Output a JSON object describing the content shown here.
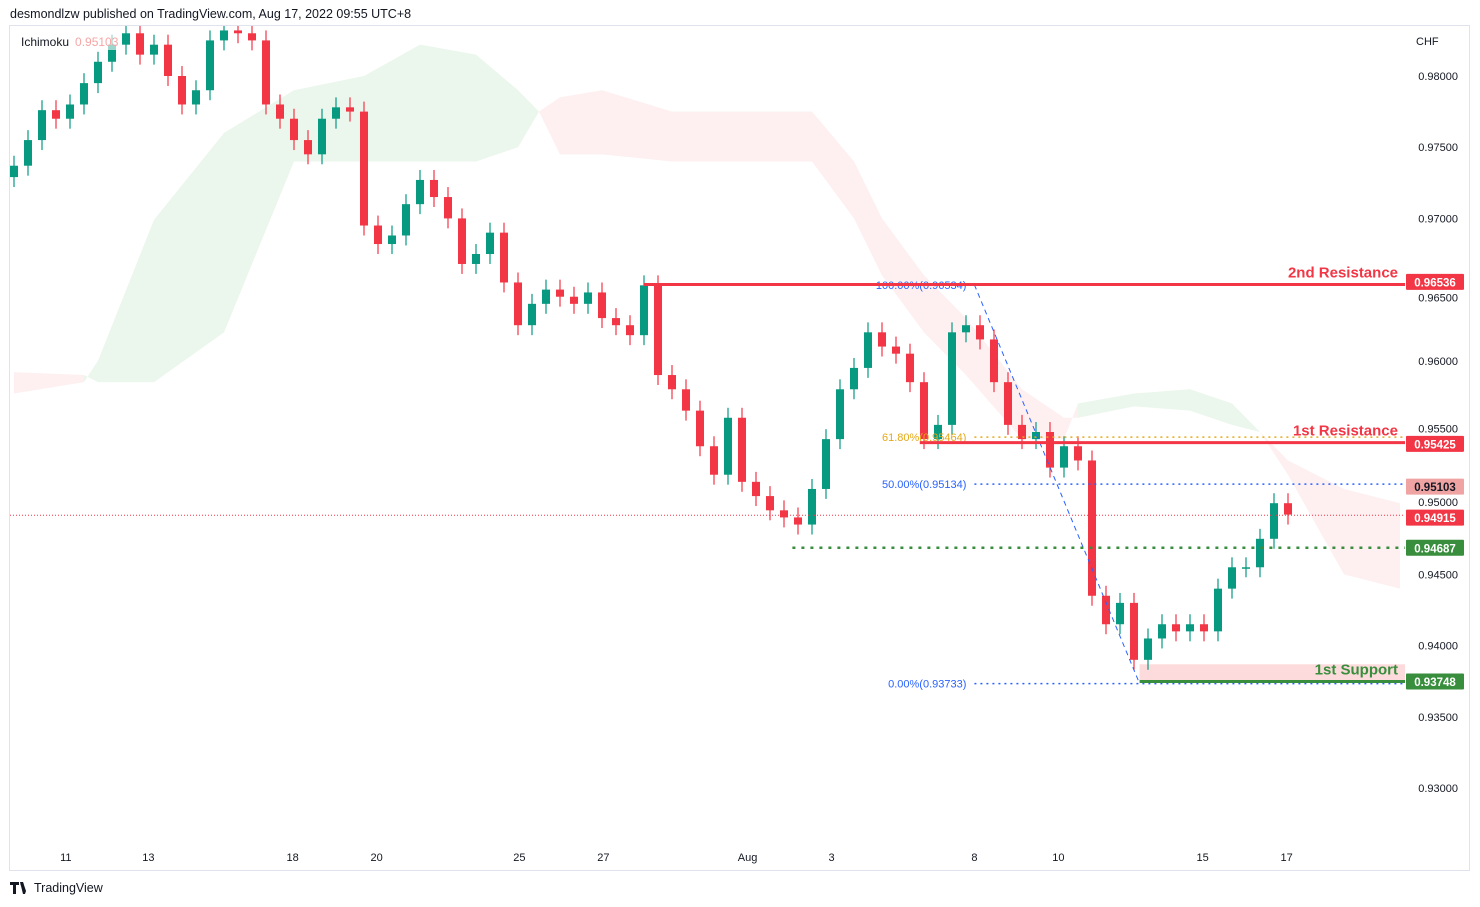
{
  "header": {
    "published": "desmondlzw published on TradingView.com, Aug 17, 2022 09:55 UTC+8"
  },
  "legend": {
    "indicator": "Ichimoku",
    "value": "0.95103"
  },
  "footer": {
    "brand": "TradingView",
    "logo_icon": "tradingview-logo-icon"
  },
  "colors": {
    "up": "#089981",
    "down": "#f23645",
    "cloud_up": "#4caf50",
    "cloud_down": "#f23645",
    "fib_blue": "#2962ff",
    "fib_orange": "#e6a817",
    "support": "#388e3c",
    "resistance": "#f23645"
  },
  "chart_data": {
    "type": "candlestick",
    "currency": "CHF",
    "yticks": [
      "0.98000",
      "0.97500",
      "0.97000",
      "0.96500",
      "0.96000",
      "0.95500",
      "0.95000",
      "0.94500",
      "0.94000",
      "0.93500",
      "0.93000"
    ],
    "ylim": [
      0.9265,
      0.9855
    ],
    "xticks": [
      {
        "label": "11",
        "bar": 3.7
      },
      {
        "label": "13",
        "bar": 9.6
      },
      {
        "label": "18",
        "bar": 19.9
      },
      {
        "label": "20",
        "bar": 25.9
      },
      {
        "label": "25",
        "bar": 36.1
      },
      {
        "label": "27",
        "bar": 42.1
      },
      {
        "label": "Aug",
        "bar": 52.4
      },
      {
        "label": "3",
        "bar": 58.4
      },
      {
        "label": "8",
        "bar": 68.6
      },
      {
        "label": "10",
        "bar": 74.6
      },
      {
        "label": "15",
        "bar": 84.9
      },
      {
        "label": "17",
        "bar": 90.9
      }
    ],
    "close": [
      0.9737,
      0.9755,
      0.9776,
      0.977,
      0.978,
      0.9795,
      0.981,
      0.9822,
      0.983,
      0.9815,
      0.9822,
      0.98,
      0.978,
      0.979,
      0.9825,
      0.9832,
      0.983,
      0.9825,
      0.978,
      0.977,
      0.9755,
      0.9745,
      0.977,
      0.9778,
      0.9775,
      0.9695,
      0.9682,
      0.9688,
      0.971,
      0.9727,
      0.9715,
      0.97,
      0.9668,
      0.9675,
      0.969,
      0.9655,
      0.9625,
      0.964,
      0.965,
      0.9645,
      0.964,
      0.9648,
      0.963,
      0.9625,
      0.9618,
      0.9653,
      0.959,
      0.958,
      0.9565,
      0.954,
      0.952,
      0.956,
      0.9515,
      0.9505,
      0.9495,
      0.949,
      0.9485,
      0.951,
      0.9545,
      0.958,
      0.9595,
      0.962,
      0.961,
      0.9605,
      0.9585,
      0.9545,
      0.9555,
      0.962,
      0.9625,
      0.9615,
      0.9585,
      0.9555,
      0.9545,
      0.955,
      0.9525,
      0.954,
      0.953,
      0.9435,
      0.9415,
      0.943,
      0.939,
      0.9405,
      0.9415,
      0.941,
      0.9415,
      0.941,
      0.944,
      0.9455,
      0.9455,
      0.9475,
      0.95,
      0.9492
    ],
    "ichimoku_cloud": [
      [
        0,
        0.9577,
        0.9592
      ],
      [
        5,
        0.9585,
        0.959
      ],
      [
        6,
        0.96,
        0.9585
      ],
      [
        10,
        0.9699,
        0.9585
      ],
      [
        15,
        0.976,
        0.962
      ],
      [
        20,
        0.979,
        0.974
      ],
      [
        25,
        0.98,
        0.974
      ],
      [
        29,
        0.9822,
        0.974
      ],
      [
        33,
        0.9815,
        0.974
      ],
      [
        36,
        0.979,
        0.975
      ],
      [
        37.5,
        0.9775,
        0.9775
      ],
      [
        39,
        0.9745,
        0.9785
      ],
      [
        42,
        0.9745,
        0.979
      ],
      [
        47,
        0.974,
        0.9775
      ],
      [
        57,
        0.974,
        0.9775
      ],
      [
        60,
        0.97,
        0.974
      ],
      [
        62,
        0.966,
        0.97
      ],
      [
        65,
        0.962,
        0.966
      ],
      [
        68,
        0.959,
        0.963
      ],
      [
        72,
        0.9545,
        0.958
      ],
      [
        75,
        0.9545,
        0.956
      ],
      [
        76,
        0.957,
        0.956
      ],
      [
        80,
        0.9577,
        0.9568
      ],
      [
        84,
        0.958,
        0.9565
      ],
      [
        87,
        0.957,
        0.9555
      ],
      [
        89,
        0.955,
        0.955
      ],
      [
        91,
        0.952,
        0.953
      ],
      [
        95,
        0.945,
        0.951
      ],
      [
        99,
        0.944,
        0.95
      ]
    ],
    "fibonacci": [
      {
        "label": "100.00%(0.96534)",
        "price": 0.96534,
        "color": "blue"
      },
      {
        "label": "61.80%(0.95464)",
        "price": 0.95464,
        "color": "orange"
      },
      {
        "label": "50.00%(0.95134)",
        "price": 0.95134,
        "color": "blue"
      },
      {
        "label": "0.00%(0.93733)",
        "price": 0.93733,
        "color": "blue"
      }
    ],
    "fib_swing": {
      "from_bar": 68.6,
      "from_price": 0.96534,
      "to_bar": 80.4,
      "to_price": 0.93733
    },
    "levels": [
      {
        "name": "2nd Resistance",
        "price": 0.96536,
        "label": "0.96536",
        "start_bar": 45,
        "kind": "resistance"
      },
      {
        "name": "1st Resistance",
        "price": 0.95425,
        "label": "0.95425",
        "start_bar": 64.7,
        "kind": "resistance"
      },
      {
        "name": "1st Support",
        "price": 0.93748,
        "label": "0.93748",
        "start_bar": 80.4,
        "kind": "support"
      },
      {
        "name": "",
        "price": 0.94687,
        "label": "0.94687",
        "start_bar": 55.6,
        "kind": "pivot"
      }
    ],
    "support_zone": [
      0.93748,
      0.9382
    ],
    "cloud_label": {
      "price": 0.95103,
      "label": "0.95103"
    },
    "last_price": {
      "price": 0.94915,
      "label": "0.94915"
    }
  }
}
